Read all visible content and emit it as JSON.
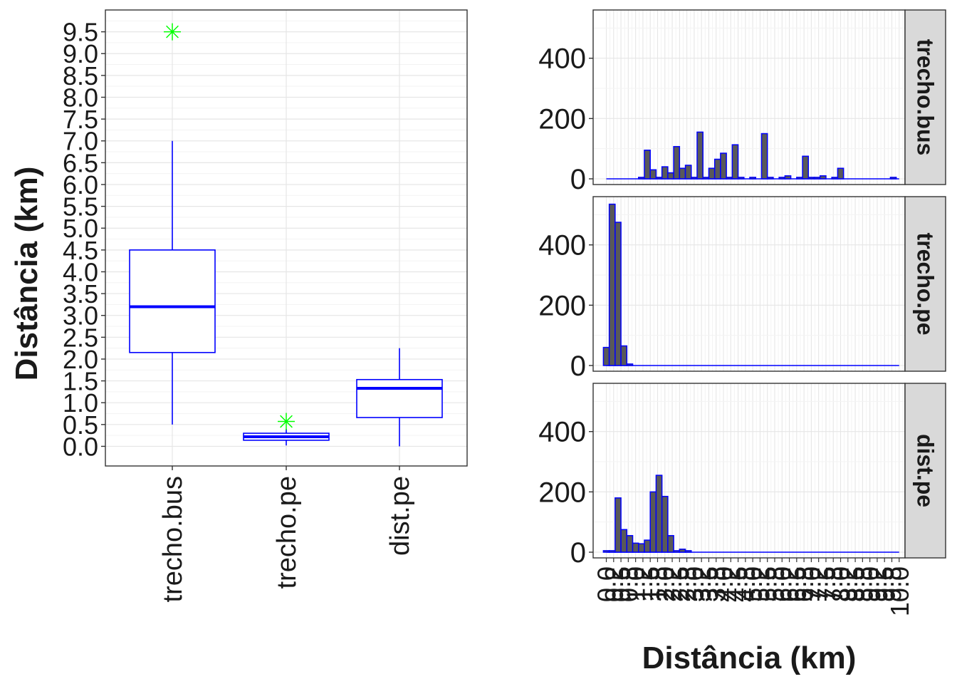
{
  "chart_data": [
    {
      "type": "box",
      "ylabel": "Distância (km)",
      "yticks": [
        0.0,
        0.5,
        1.0,
        1.5,
        2.0,
        2.5,
        3.0,
        3.5,
        4.0,
        4.5,
        5.0,
        5.5,
        6.0,
        6.5,
        7.0,
        7.5,
        8.0,
        8.5,
        9.0,
        9.5
      ],
      "ytick_labels": [
        "0.0",
        "0.5",
        "1.0",
        "1.5",
        "2.0",
        "2.5",
        "3.0",
        "3.5",
        "4.0",
        "4.5",
        "5.0",
        "5.5",
        "6.0",
        "6.5",
        "7.0",
        "7.5",
        "8.0",
        "8.5",
        "9.0",
        "9.5"
      ],
      "ylim": [
        -0.45,
        10.0
      ],
      "categories": [
        "trecho.bus",
        "trecho.pe",
        "dist.pe"
      ],
      "boxes": [
        {
          "name": "trecho.bus",
          "whisker_low": 0.5,
          "q1": 2.15,
          "median": 3.2,
          "q3": 4.5,
          "whisker_high": 7.0,
          "outliers": [
            9.5
          ]
        },
        {
          "name": "trecho.pe",
          "whisker_low": 0.02,
          "q1": 0.14,
          "median": 0.22,
          "q3": 0.3,
          "whisker_high": 0.4,
          "outliers": [
            0.57
          ]
        },
        {
          "name": "dist.pe",
          "whisker_low": 0.0,
          "q1": 0.66,
          "median": 1.33,
          "q3": 1.53,
          "whisker_high": 2.25,
          "outliers": []
        }
      ],
      "colors": {
        "box": "#0000ff",
        "outlier": "#00ff00"
      },
      "grid": true
    },
    {
      "type": "bar",
      "subtype": "faceted-histogram",
      "xlabel": "Distância (km)",
      "ylabel": "",
      "ylim": [
        0,
        560
      ],
      "yticks": [
        0,
        200,
        400
      ],
      "xlim": [
        -0.45,
        10.2
      ],
      "xticks": [
        0.0,
        0.25,
        0.5,
        0.75,
        1.0,
        1.25,
        1.5,
        1.75,
        2.0,
        2.25,
        2.5,
        2.75,
        3.0,
        3.25,
        3.5,
        3.75,
        4.0,
        4.25,
        4.5,
        4.75,
        5.0,
        5.25,
        5.5,
        5.75,
        6.0,
        6.25,
        6.5,
        6.75,
        7.0,
        7.25,
        7.5,
        7.75,
        8.0,
        8.25,
        8.5,
        8.75,
        9.0,
        9.25,
        9.5,
        9.75,
        10.0
      ],
      "xtick_labels": [
        "0.0",
        "0.2",
        "0.5",
        "0.8",
        "1.0",
        "1.2",
        "1.5",
        "1.8",
        "2.0",
        "2.2",
        "2.5",
        "2.8",
        "3.0",
        "3.2",
        "3.5",
        "3.8",
        "4.0",
        "4.2",
        "4.5",
        "4.8",
        "5.0",
        "5.2",
        "5.5",
        "5.8",
        "6.0",
        "6.2",
        "6.5",
        "6.8",
        "7.0",
        "7.2",
        "7.5",
        "7.8",
        "8.0",
        "8.2",
        "8.5",
        "8.8",
        "9.0",
        "9.2",
        "9.5",
        "9.8",
        "10.0"
      ],
      "bin_width": 0.2,
      "colors": {
        "bar_fill": "#595959",
        "bar_outline": "#0000ff",
        "strip": "#d9d9d9"
      },
      "grid": true,
      "facets": [
        {
          "name": "trecho.bus",
          "bins": [
            [
              1.2,
              5
            ],
            [
              1.4,
              95
            ],
            [
              1.6,
              30
            ],
            [
              1.8,
              5
            ],
            [
              2.0,
              40
            ],
            [
              2.2,
              20
            ],
            [
              2.4,
              107
            ],
            [
              2.6,
              35
            ],
            [
              2.8,
              45
            ],
            [
              3.0,
              5
            ],
            [
              3.2,
              155
            ],
            [
              3.4,
              5
            ],
            [
              3.6,
              35
            ],
            [
              3.8,
              65
            ],
            [
              4.0,
              85
            ],
            [
              4.2,
              5
            ],
            [
              4.4,
              113
            ],
            [
              4.6,
              5
            ],
            [
              5.0,
              5
            ],
            [
              5.4,
              150
            ],
            [
              5.6,
              5
            ],
            [
              6.0,
              5
            ],
            [
              6.2,
              10
            ],
            [
              6.6,
              5
            ],
            [
              6.8,
              75
            ],
            [
              7.0,
              5
            ],
            [
              7.2,
              5
            ],
            [
              7.4,
              10
            ],
            [
              7.8,
              5
            ],
            [
              8.0,
              35
            ],
            [
              9.8,
              5
            ]
          ]
        },
        {
          "name": "trecho.pe",
          "bins": [
            [
              0.0,
              60
            ],
            [
              0.2,
              535
            ],
            [
              0.4,
              475
            ],
            [
              0.6,
              65
            ],
            [
              0.8,
              5
            ]
          ]
        },
        {
          "name": "dist.pe",
          "bins": [
            [
              0.0,
              5
            ],
            [
              0.2,
              5
            ],
            [
              0.4,
              180
            ],
            [
              0.6,
              75
            ],
            [
              0.8,
              55
            ],
            [
              1.0,
              30
            ],
            [
              1.2,
              28
            ],
            [
              1.4,
              40
            ],
            [
              1.6,
              200
            ],
            [
              1.8,
              255
            ],
            [
              2.0,
              185
            ],
            [
              2.2,
              55
            ],
            [
              2.4,
              5
            ],
            [
              2.6,
              10
            ],
            [
              2.8,
              5
            ]
          ]
        }
      ]
    }
  ]
}
